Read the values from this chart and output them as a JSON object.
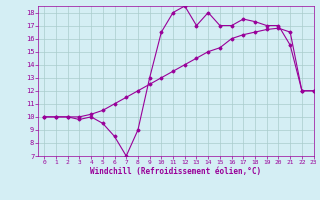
{
  "xlabel": "Windchill (Refroidissement éolien,°C)",
  "bg_color": "#d4eef4",
  "grid_color": "#aacccc",
  "line_color": "#990099",
  "x_temp": [
    0,
    1,
    2,
    3,
    4,
    5,
    6,
    7,
    8,
    9,
    10,
    11,
    12,
    13,
    14,
    15,
    16,
    17,
    18,
    19,
    20,
    21,
    22,
    23
  ],
  "y_temp": [
    10,
    10,
    10,
    10,
    10.2,
    10.5,
    11,
    11.5,
    12,
    12.5,
    13,
    13.5,
    14,
    14.5,
    15,
    15.3,
    16,
    16.3,
    16.5,
    16.7,
    16.8,
    16.5,
    12,
    12
  ],
  "x_wind": [
    0,
    1,
    2,
    3,
    4,
    5,
    6,
    7,
    8,
    9,
    10,
    11,
    12,
    13,
    14,
    15,
    16,
    17,
    18,
    19,
    20,
    21,
    22,
    23
  ],
  "y_wind": [
    10,
    10,
    10,
    9.8,
    10,
    9.5,
    8.5,
    7,
    9,
    13,
    16.5,
    18,
    18.5,
    17,
    18,
    17,
    17,
    17.5,
    17.3,
    17,
    17,
    15.5,
    12,
    12
  ],
  "xlim": [
    -0.5,
    23
  ],
  "ylim": [
    7,
    18.5
  ],
  "xticks": [
    0,
    1,
    2,
    3,
    4,
    5,
    6,
    7,
    8,
    9,
    10,
    11,
    12,
    13,
    14,
    15,
    16,
    17,
    18,
    19,
    20,
    21,
    22,
    23
  ],
  "yticks": [
    7,
    8,
    9,
    10,
    11,
    12,
    13,
    14,
    15,
    16,
    17,
    18
  ]
}
